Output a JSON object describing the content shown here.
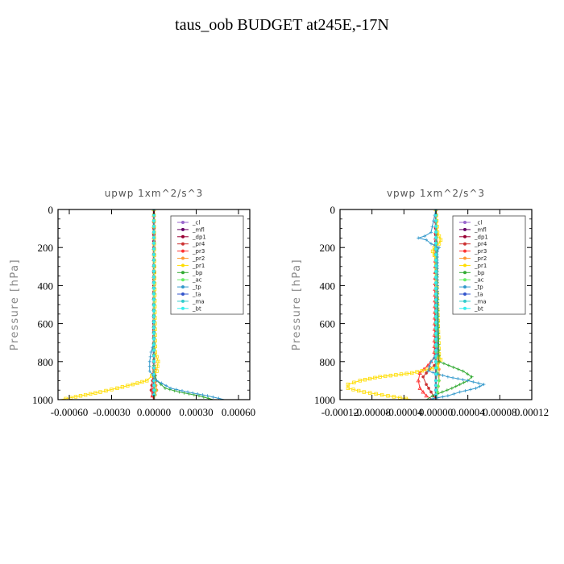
{
  "title": "taus_oob  BUDGET at245E,-17N",
  "chart_data": [
    {
      "type": "line",
      "title": "upwp   1xm^2/s^3",
      "ylabel": "Pressure [hPa]",
      "xlabel": "",
      "ylim": [
        1000,
        0
      ],
      "xlim": [
        -0.00068,
        0.00068
      ],
      "x_ticks": [
        -0.0006,
        -0.0003,
        0.0,
        0.0003,
        0.0006
      ],
      "x_tick_labels": [
        "-0.00060",
        "-0.00030",
        "0.00000",
        "0.00030",
        "0.00060"
      ],
      "y_ticks": [
        0,
        200,
        400,
        600,
        800,
        1000
      ],
      "y_tick_labels": [
        "0",
        "200",
        "400",
        "600",
        "800",
        "1000"
      ],
      "legend_position": "top-right",
      "series": [
        {
          "name": "_cl",
          "color": "#9966cc",
          "marker": "circle",
          "y": [
            0,
            100,
            200,
            300,
            400,
            500,
            600,
            700,
            800,
            900,
            950,
            1000
          ],
          "x": [
            0,
            0,
            0,
            0,
            0,
            0,
            0,
            0,
            0,
            0,
            0,
            0
          ]
        },
        {
          "name": "_mfl",
          "color": "#660066",
          "marker": "diamond",
          "y": [
            0,
            100,
            200,
            300,
            400,
            500,
            600,
            700,
            800,
            900,
            950,
            1000
          ],
          "x": [
            0,
            0,
            0,
            0,
            0,
            0,
            0,
            0,
            0,
            0,
            0,
            0
          ]
        },
        {
          "name": "_dp1",
          "color": "#990033",
          "marker": "circle",
          "y": [
            0,
            100,
            200,
            300,
            400,
            500,
            600,
            700,
            800,
            900,
            950,
            1000
          ],
          "x": [
            0,
            0,
            0,
            0,
            0,
            0,
            0,
            0,
            0,
            0,
            0,
            0
          ]
        },
        {
          "name": "_pr4",
          "color": "#cc3333",
          "marker": "circle",
          "y": [
            0,
            700,
            800,
            900,
            950,
            980,
            1000
          ],
          "x": [
            0,
            0,
            0,
            -1e-05,
            -2e-05,
            -1e-05,
            0
          ]
        },
        {
          "name": "_pr3",
          "color": "#ff3333",
          "marker": "triangle",
          "y": [
            0,
            700,
            800,
            900,
            950,
            980,
            1000
          ],
          "x": [
            0,
            0,
            0,
            1e-05,
            -1e-05,
            -1e-05,
            0
          ]
        },
        {
          "name": "_pr2",
          "color": "#ff9933",
          "marker": "circle",
          "y": [
            0,
            700,
            800,
            900,
            950,
            1000
          ],
          "x": [
            0,
            0,
            0,
            1e-05,
            2e-05,
            0
          ]
        },
        {
          "name": "_pr1",
          "color": "#ffdd00",
          "marker": "square",
          "y": [
            0,
            750,
            800,
            850,
            900,
            920,
            940,
            960,
            980,
            1000
          ],
          "x": [
            0,
            1e-05,
            3e-05,
            2e-05,
            -5e-05,
            -0.00015,
            -0.00026,
            -0.00038,
            -0.00052,
            -0.00066
          ]
        },
        {
          "name": "_bp",
          "color": "#33aa33",
          "marker": "plus",
          "y": [
            0,
            850,
            900,
            940,
            960,
            980,
            1000
          ],
          "x": [
            0,
            0,
            2e-05,
            8e-05,
            0.00018,
            0.00032,
            0.00042
          ]
        },
        {
          "name": "_ac",
          "color": "#66ee66",
          "marker": "diamond",
          "y": [
            0,
            800,
            900,
            950,
            1000
          ],
          "x": [
            0,
            0,
            0,
            1e-05,
            0
          ]
        },
        {
          "name": "_tp",
          "color": "#3399cc",
          "marker": "plus",
          "y": [
            0,
            700,
            750,
            800,
            850,
            900,
            940,
            960,
            980,
            1000
          ],
          "x": [
            0,
            0,
            -2e-05,
            -3e-05,
            -3e-05,
            2e-05,
            0.00012,
            0.00024,
            0.00038,
            0.0005
          ]
        },
        {
          "name": "_ta",
          "color": "#3355cc",
          "marker": "arrow",
          "y": [
            0,
            800,
            900,
            950,
            1000
          ],
          "x": [
            0,
            0,
            0,
            0,
            0
          ]
        },
        {
          "name": "_ma",
          "color": "#33cccc",
          "marker": "dash",
          "y": [
            0,
            800,
            900,
            950,
            1000
          ],
          "x": [
            0,
            0,
            0,
            0,
            0
          ]
        },
        {
          "name": "_bt",
          "color": "#33eeee",
          "marker": "star",
          "y": [
            0,
            800,
            900,
            950,
            1000
          ],
          "x": [
            0,
            0,
            0,
            0,
            0
          ]
        }
      ]
    },
    {
      "type": "line",
      "title": "vpwp   1xm^2/s^3",
      "ylabel": "Pressure [hPa]",
      "xlabel": "",
      "ylim": [
        1000,
        0
      ],
      "xlim": [
        -0.00012,
        0.00012
      ],
      "x_ticks": [
        -0.00012,
        -8e-05,
        -4e-05,
        0.0,
        4e-05,
        8e-05,
        0.00012
      ],
      "x_tick_labels": [
        "-0.00012",
        "-0.00008",
        "-0.00004",
        "0.00000",
        "0.00004",
        "0.00008",
        "0.00012"
      ],
      "y_ticks": [
        0,
        200,
        400,
        600,
        800,
        1000
      ],
      "y_tick_labels": [
        "0",
        "200",
        "400",
        "600",
        "800",
        "1000"
      ],
      "legend_position": "top-right",
      "series": [
        {
          "name": "_cl",
          "color": "#9966cc",
          "marker": "circle",
          "y": [
            0,
            100,
            200,
            300,
            400,
            500,
            600,
            700,
            800,
            900,
            950,
            1000
          ],
          "x": [
            0,
            0,
            0,
            0,
            0,
            0,
            0,
            0,
            0,
            0,
            0,
            0
          ]
        },
        {
          "name": "_mfl",
          "color": "#660066",
          "marker": "diamond",
          "y": [
            0,
            100,
            200,
            300,
            400,
            500,
            600,
            700,
            800,
            900,
            950,
            1000
          ],
          "x": [
            0,
            0,
            0,
            0,
            0,
            0,
            0,
            0,
            0,
            0,
            0,
            0
          ]
        },
        {
          "name": "_dp1",
          "color": "#990033",
          "marker": "circle",
          "y": [
            0,
            100,
            200,
            300,
            400,
            500,
            600,
            700,
            800,
            900,
            950,
            1000
          ],
          "x": [
            0,
            0,
            0,
            0,
            0,
            0,
            0,
            0,
            0,
            0,
            0,
            0
          ]
        },
        {
          "name": "_pr4",
          "color": "#cc3333",
          "marker": "circle",
          "y": [
            0,
            760,
            800,
            840,
            880,
            920,
            960,
            1000
          ],
          "x": [
            0,
            2e-06,
            4e-06,
            -8e-06,
            -1.6e-05,
            -1.2e-05,
            -6e-06,
            0
          ]
        },
        {
          "name": "_pr3",
          "color": "#ff3333",
          "marker": "triangle",
          "y": [
            0,
            780,
            820,
            860,
            900,
            940,
            980,
            1000
          ],
          "x": [
            0,
            -2e-06,
            -1e-05,
            -2e-05,
            -2.2e-05,
            -2e-05,
            -1.2e-05,
            -4e-06
          ]
        },
        {
          "name": "_pr2",
          "color": "#ff9933",
          "marker": "circle",
          "y": [
            0,
            780,
            840,
            900,
            960,
            1000
          ],
          "x": [
            0,
            2e-06,
            4e-06,
            4e-06,
            2e-06,
            0
          ]
        },
        {
          "name": "_pr1",
          "color": "#ffdd00",
          "marker": "square",
          "y": [
            0,
            120,
            140,
            160,
            180,
            200,
            220,
            240,
            260,
            760,
            790,
            830,
            860,
            880,
            900,
            920,
            940,
            960,
            980,
            1000
          ],
          "x": [
            0,
            2e-06,
            4e-06,
            6e-06,
            4e-06,
            -2e-06,
            -4e-06,
            -2e-06,
            0,
            4e-06,
            6e-06,
            2e-06,
            -3e-05,
            -7e-05,
            -9.5e-05,
            -0.00011,
            -0.00011,
            -9e-05,
            -6e-05,
            -3e-05
          ]
        },
        {
          "name": "_bp",
          "color": "#33aa33",
          "marker": "plus",
          "y": [
            0,
            800,
            820,
            850,
            880,
            900,
            920,
            940,
            960,
            980,
            1000
          ],
          "x": [
            0,
            4e-06,
            1.6e-05,
            3.4e-05,
            4.5e-05,
            4e-05,
            3e-05,
            2e-05,
            8e-06,
            -4e-06,
            -1.2e-05
          ]
        },
        {
          "name": "_ac",
          "color": "#66ee66",
          "marker": "diamond",
          "y": [
            0,
            780,
            860,
            900,
            960,
            1000
          ],
          "x": [
            0,
            0,
            2e-06,
            4e-06,
            2e-06,
            0
          ]
        },
        {
          "name": "_tp",
          "color": "#3399cc",
          "marker": "plus",
          "y": [
            0,
            120,
            140,
            150,
            160,
            180,
            200,
            220,
            760,
            800,
            850,
            880,
            900,
            920,
            940,
            960,
            980,
            1000
          ],
          "x": [
            0,
            -6e-06,
            -1.4e-05,
            -2.2e-05,
            -1.2e-05,
            -6e-06,
            4e-06,
            2e-06,
            2e-06,
            -6e-06,
            -1e-05,
            1.5e-05,
            4e-05,
            6e-05,
            5e-05,
            3e-05,
            1.5e-05,
            -1e-05
          ]
        },
        {
          "name": "_ta",
          "color": "#3355cc",
          "marker": "arrow",
          "y": [
            0,
            800,
            900,
            950,
            1000
          ],
          "x": [
            0,
            0,
            0,
            0,
            0
          ]
        },
        {
          "name": "_ma",
          "color": "#33cccc",
          "marker": "dash",
          "y": [
            0,
            800,
            900,
            950,
            1000
          ],
          "x": [
            0,
            0,
            0,
            0,
            0
          ]
        },
        {
          "name": "_bt",
          "color": "#33eeee",
          "marker": "star",
          "y": [
            0,
            800,
            900,
            950,
            1000
          ],
          "x": [
            0,
            0,
            0,
            0,
            0
          ]
        }
      ]
    }
  ]
}
